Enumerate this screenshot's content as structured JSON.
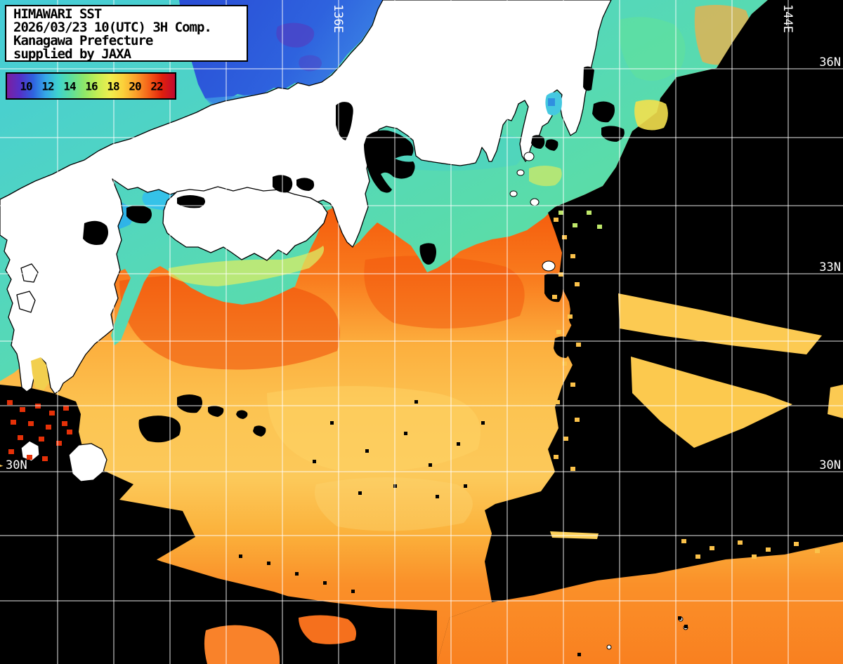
{
  "title_box": {
    "lines": [
      "HIMAWARI SST",
      "2026/03/23 10(UTC) 3H Comp.",
      "Kanagawa Prefecture",
      "supplied by JAXA"
    ]
  },
  "legend": {
    "description": "sea surface temperature colorbar, degrees C",
    "ticks": [
      "10",
      "12",
      "14",
      "16",
      "18",
      "20",
      "22"
    ],
    "gradient": [
      "#7b1fa0",
      "#5530c8",
      "#2f62e0",
      "#35a8e8",
      "#3fd4cc",
      "#5fdf9a",
      "#8fe768",
      "#c4ee54",
      "#f0ee4e",
      "#fbd03a",
      "#fb9e2a",
      "#f45f18",
      "#e0200c",
      "#c00a30"
    ]
  },
  "grid_labels": {
    "meridians": [
      {
        "text": "136E"
      },
      {
        "text": "144E"
      }
    ],
    "parallels": [
      {
        "text": "36N"
      },
      {
        "text": "33N"
      },
      {
        "text": "30N"
      },
      {
        "text": "30N"
      }
    ]
  },
  "map_colors": {
    "land": "#ffffff",
    "coastline": "#000000",
    "cloud_no_data": "#000000",
    "grid": "#ffffff",
    "sea_cold_blue": "#2a4fd6",
    "sea_cool_cyan": "#45ccd8",
    "sea_mild_green": "#5ddf9f",
    "sea_warm_orange": "#f4580a",
    "sea_hot_tan": "#fcc452"
  }
}
